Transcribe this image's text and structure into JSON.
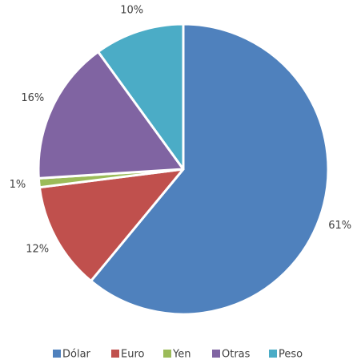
{
  "chart_data": {
    "type": "pie",
    "categories": [
      "Dólar",
      "Euro",
      "Yen",
      "Otras",
      "Peso"
    ],
    "values": [
      61,
      12,
      1,
      16,
      10
    ],
    "value_labels": [
      "61%",
      "12%",
      "1%",
      "16%",
      "10%"
    ],
    "colors": [
      "#4f81bd",
      "#c0504d",
      "#9bbb59",
      "#8064a2",
      "#4bacc6"
    ],
    "legend": "bottom"
  }
}
